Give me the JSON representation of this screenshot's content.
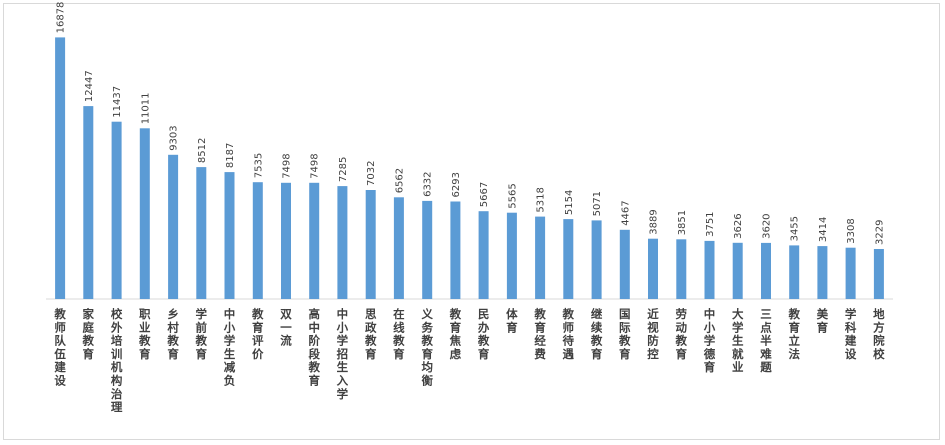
{
  "chart_data": {
    "type": "bar",
    "title": "",
    "xlabel": "",
    "ylabel": "",
    "ylim": [
      0,
      18000
    ],
    "grid": false,
    "legend": "none",
    "bar_color": "#5b9bd5",
    "categories": [
      "教师队伍建设",
      "家庭教育",
      "校外培训机构治理",
      "职业教育",
      "乡村教育",
      "学前教育",
      "中小学生减负",
      "教育评价",
      "双一流",
      "高中阶段教育",
      "中小学招生入学",
      "思政教育",
      "在线教育",
      "义务教育均衡",
      "教育焦虑",
      "民办教育",
      "体育",
      "教育经费",
      "教师待遇",
      "继续教育",
      "国际教育",
      "近视防控",
      "劳动教育",
      "中小学德育",
      "大学生就业",
      "三点半难题",
      "教育立法",
      "美育",
      "学科建设",
      "地方院校"
    ],
    "values": [
      16878,
      12447,
      11437,
      11011,
      9303,
      8512,
      8187,
      7535,
      7498,
      7498,
      7285,
      7032,
      6562,
      6332,
      6293,
      5667,
      5565,
      5318,
      5154,
      5071,
      4467,
      3889,
      3851,
      3751,
      3626,
      3620,
      3455,
      3414,
      3308,
      3229
    ]
  }
}
